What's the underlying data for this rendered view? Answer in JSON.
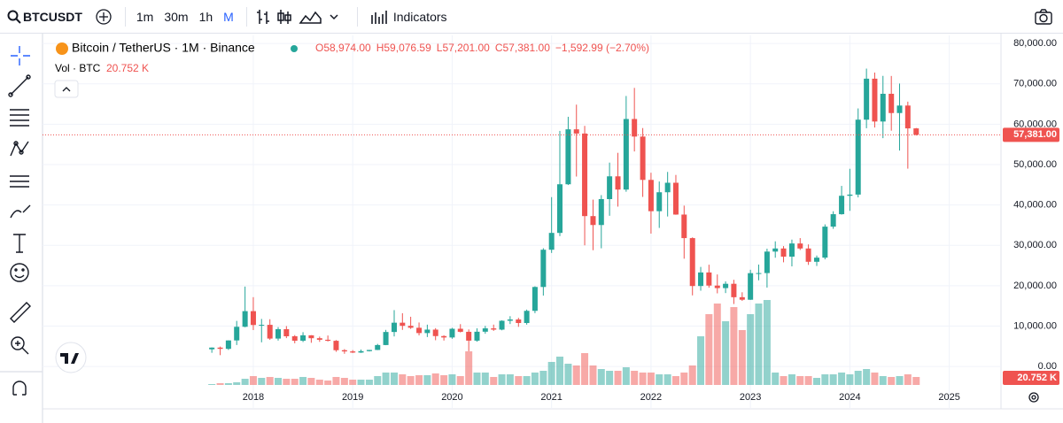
{
  "toolbar": {
    "symbol": "BTCUSDT",
    "intervals": [
      "1m",
      "30m",
      "1h",
      "M"
    ],
    "indicators": "Indicators"
  },
  "chart_data": {
    "type": "candlestick",
    "title": "Bitcoin / TetherUS · 1M · Binance",
    "ohlc_labels": {
      "open": "O58,974.00",
      "high": "H59,076.59",
      "low": "L57,201.00",
      "close": "C57,381.00",
      "change": "−1,592.99 (−2.70%)"
    },
    "volume_title": "Vol · BTC",
    "volume_label": "20.752 K",
    "last_price_label": "57,381.00",
    "up_color": "#26a69a",
    "down_color": "#ef5350",
    "grid": true,
    "xlim": [
      2015.88,
      2025.52
    ],
    "xticks": [
      2018,
      2019,
      2020,
      2021,
      2022,
      2023,
      2024,
      2025
    ],
    "ylim": [
      -5000,
      82000
    ],
    "yticks": [
      {
        "value": 0,
        "label": "0.00"
      },
      {
        "value": 10000,
        "label": "10,000.00"
      },
      {
        "value": 20000,
        "label": "20,000.00"
      },
      {
        "value": 30000,
        "label": "30,000.00"
      },
      {
        "value": 40000,
        "label": "40,000.00"
      },
      {
        "value": 50000,
        "label": "50,000.00"
      },
      {
        "value": 60000,
        "label": "60,000.00"
      },
      {
        "value": 70000,
        "label": "70,000.00"
      },
      {
        "value": 80000,
        "label": "80,000.00"
      }
    ],
    "x": [
      2017.583,
      2017.667,
      2017.75,
      2017.833,
      2017.917,
      2018.0,
      2018.083,
      2018.167,
      2018.25,
      2018.333,
      2018.417,
      2018.5,
      2018.583,
      2018.667,
      2018.75,
      2018.833,
      2018.917,
      2019.0,
      2019.083,
      2019.167,
      2019.25,
      2019.333,
      2019.417,
      2019.5,
      2019.583,
      2019.667,
      2019.75,
      2019.833,
      2019.917,
      2020.0,
      2020.083,
      2020.167,
      2020.25,
      2020.333,
      2020.417,
      2020.5,
      2020.583,
      2020.667,
      2020.75,
      2020.833,
      2020.917,
      2021.0,
      2021.083,
      2021.167,
      2021.25,
      2021.333,
      2021.417,
      2021.5,
      2021.583,
      2021.667,
      2021.75,
      2021.833,
      2021.917,
      2022.0,
      2022.083,
      2022.167,
      2022.25,
      2022.333,
      2022.417,
      2022.5,
      2022.583,
      2022.667,
      2022.75,
      2022.833,
      2022.917,
      2023.0,
      2023.083,
      2023.167,
      2023.25,
      2023.333,
      2023.417,
      2023.5,
      2023.583,
      2023.667,
      2023.75,
      2023.833,
      2023.917,
      2024.0,
      2024.083,
      2024.167,
      2024.25,
      2024.333,
      2024.417,
      2024.5,
      2024.583,
      2024.667
    ],
    "open": [
      4261,
      4689,
      4378,
      6463,
      9838,
      13716,
      10285,
      10326,
      6923,
      9246,
      7494,
      6391,
      7730,
      7011,
      6626,
      6372,
      4041,
      3742,
      3458,
      3812,
      4103,
      5321,
      8555,
      10855,
      10085,
      9597,
      8289,
      9141,
      7541,
      7195,
      9352,
      8600,
      6410,
      8621,
      9448,
      9138,
      11335,
      11650,
      10776,
      13792,
      19700,
      28923,
      33092,
      45134,
      58739,
      57697,
      37253,
      35045,
      41461,
      47100,
      43821,
      61300,
      56950,
      46216,
      38466,
      43160,
      45510,
      37631,
      31801,
      19942,
      23296,
      20048,
      19423,
      20490,
      17165,
      16541,
      23125,
      23142,
      28465,
      29233,
      27210,
      30472,
      29232,
      25941,
      26963,
      34640,
      37723,
      42284,
      42580,
      61131,
      71281,
      60672,
      67540,
      62773,
      64629,
      58974
    ],
    "high": [
      4745,
      4939,
      6470,
      11300,
      19798,
      17176,
      11786,
      11710,
      9759,
      10020,
      7786,
      8507,
      7770,
      7410,
      7680,
      6545,
      4312,
      4069,
      4200,
      4120,
      5600,
      9074,
      13970,
      13200,
      12325,
      10905,
      10370,
      9505,
      7750,
      9578,
      10500,
      9188,
      9460,
      10068,
      10380,
      11444,
      12468,
      12067,
      14100,
      19863,
      29300,
      41950,
      58352,
      61845,
      64854,
      59592,
      41330,
      42448,
      50500,
      52920,
      67000,
      69000,
      59053,
      47990,
      45821,
      48190,
      47444,
      39845,
      31986,
      24668,
      25211,
      22799,
      21085,
      21480,
      18387,
      23960,
      25250,
      29184,
      31000,
      29820,
      31431,
      31804,
      30244,
      27483,
      35198,
      38450,
      44729,
      48969,
      63913,
      73777,
      72797,
      71979,
      71958,
      70079,
      65593,
      59076.59
    ],
    "low": [
      3400,
      2817,
      4110,
      5325,
      9722,
      9035,
      6000,
      6600,
      6425,
      7032,
      5755,
      6070,
      5880,
      6111,
      6205,
      3652,
      3157,
      3349,
      3370,
      3733,
      4067,
      5285,
      7451,
      9077,
      9320,
      7710,
      7300,
      6515,
      6435,
      6871,
      8445,
      3782,
      6150,
      8117,
      8833,
      8975,
      10518,
      9825,
      10375,
      13219,
      17572,
      28130,
      32296,
      44950,
      47044,
      30000,
      28805,
      29278,
      37332,
      39600,
      43283,
      53256,
      42000,
      32917,
      34322,
      37155,
      37578,
      26700,
      17622,
      18781,
      19520,
      18125,
      18190,
      15476,
      16256,
      16499,
      21351,
      19549,
      26942,
      25811,
      24800,
      28861,
      25166,
      24901,
      26538,
      34097,
      37615,
      38555,
      41884,
      59005,
      59191,
      56552,
      58402,
      53485,
      49000,
      57201
    ],
    "close": [
      4689,
      4378,
      6463,
      9838,
      13716,
      10285,
      10326,
      6923,
      9246,
      7494,
      6391,
      7730,
      7011,
      6626,
      6372,
      4041,
      3742,
      3458,
      3812,
      4103,
      5321,
      8555,
      10855,
      10085,
      9597,
      8289,
      9141,
      7541,
      7195,
      9352,
      8600,
      6410,
      8621,
      9448,
      9138,
      11335,
      11650,
      10776,
      13792,
      19700,
      28923,
      33092,
      45134,
      58739,
      57697,
      37253,
      35045,
      41461,
      47100,
      43821,
      61300,
      56950,
      46216,
      38466,
      43160,
      45510,
      37631,
      31801,
      19942,
      23296,
      20048,
      19423,
      20490,
      17165,
      16541,
      23125,
      23142,
      28465,
      29233,
      27210,
      30472,
      29232,
      25941,
      26963,
      34640,
      37723,
      42284,
      42580,
      61131,
      71281,
      60672,
      67540,
      62773,
      64629,
      58974,
      57381
    ],
    "volume": [
      2.3,
      4.6,
      4.6,
      6.9,
      16.1,
      23.1,
      18.4,
      20.8,
      18.4,
      16.1,
      16.1,
      20.8,
      18.4,
      13.8,
      11.5,
      20.8,
      18.4,
      13.8,
      13.8,
      13.8,
      23.1,
      32.3,
      32.3,
      27.7,
      23.1,
      25.4,
      25.4,
      30.0,
      25.4,
      27.7,
      23.1,
      87.6,
      32.3,
      32.3,
      20.8,
      27.7,
      27.7,
      23.1,
      23.1,
      32.3,
      36.9,
      60.0,
      73.8,
      55.3,
      50.7,
      83.0,
      50.7,
      41.5,
      36.9,
      36.9,
      46.1,
      36.9,
      32.3,
      32.3,
      27.7,
      27.7,
      23.1,
      32.3,
      50.7,
      126.8,
      184.5,
      212.2,
      166.0,
      202.9,
      143.0,
      184.5,
      212.2,
      221.4,
      32.3,
      23.1,
      27.7,
      23.1,
      23.1,
      18.4,
      27.7,
      27.7,
      32.3,
      27.7,
      36.9,
      41.5,
      32.3,
      23.1,
      20.8,
      23.1,
      27.7,
      20.752
    ]
  }
}
